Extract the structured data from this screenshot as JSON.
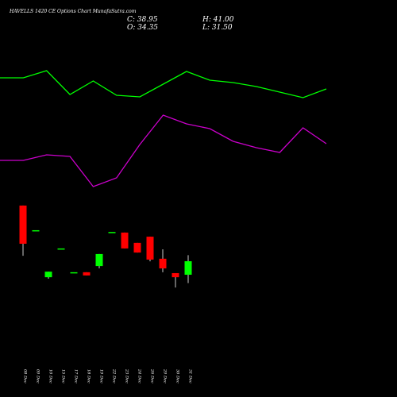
{
  "chart_data": [
    {
      "type": "line",
      "title": "HAVELLS 1420  CE Options  Chart MunafaSutra.com",
      "categories": [
        null,
        null,
        null,
        null,
        null,
        null,
        null,
        null,
        null,
        null,
        null,
        null,
        null,
        null,
        null
      ],
      "ylim": [
        0,
        200
      ],
      "series": [
        {
          "color": "#00ff00",
          "values": [
            152,
            152,
            161,
            131,
            148,
            130,
            128,
            144,
            160,
            149,
            146,
            141,
            134,
            127,
            138
          ]
        },
        {
          "color": "#cc00cc",
          "values": [
            48,
            48,
            55,
            53,
            15,
            26,
            68,
            105,
            94,
            88,
            72,
            64,
            58,
            89,
            69
          ]
        }
      ]
    },
    {
      "type": "candlestick",
      "ohlc_labels": {
        "close": "C: 38.95",
        "open": "O: 34.35",
        "high": "H: 41.00",
        "low": "L: 31.50"
      },
      "categories": [
        "08 Dec",
        "09 Dec",
        "10 Dec",
        "15 Dec",
        "17 Dec",
        "18 Dec",
        "19 Dec",
        "22 Dec",
        "23 Dec",
        "24 Dec",
        "26 Dec",
        "29 Dec",
        "30 Dec",
        "31 Dec"
      ],
      "open": [
        57.9,
        49.5,
        33.5,
        43.3,
        35.2,
        35.2,
        37.3,
        48.9,
        48.7,
        45.2,
        47.3,
        39.8,
        34.9,
        34.35
      ],
      "high": [
        57.9,
        49.5,
        35.4,
        43.3,
        35.2,
        35.2,
        41.4,
        48.9,
        48.7,
        45.2,
        47.3,
        43.0,
        34.9,
        41.0
      ],
      "low": [
        40.8,
        49.5,
        33.0,
        43.3,
        35.2,
        34.1,
        36.5,
        48.9,
        43.3,
        41.9,
        38.9,
        35.2,
        30.0,
        31.5
      ],
      "close": [
        44.9,
        49.5,
        35.4,
        43.3,
        35.2,
        34.1,
        41.4,
        48.9,
        43.3,
        41.9,
        39.5,
        36.5,
        33.5,
        38.95
      ],
      "up_color": "#00ff00",
      "down_color": "#ff0000",
      "ylim": [
        28,
        60
      ]
    }
  ]
}
